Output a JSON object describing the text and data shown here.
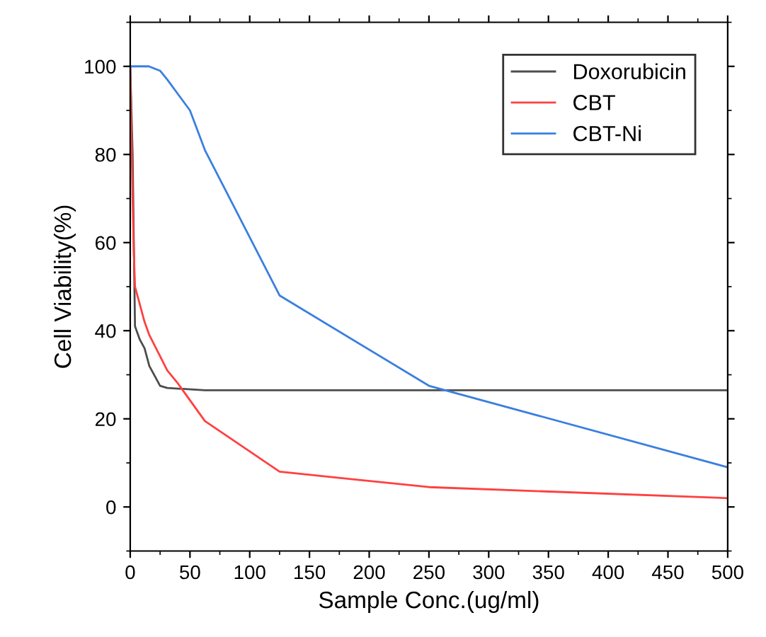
{
  "chart_data": {
    "type": "line",
    "xlabel": "Sample Conc.(ug/ml)",
    "ylabel": "Cell Viability(%)",
    "xlim": [
      0,
      500
    ],
    "xticks": [
      0,
      50,
      100,
      150,
      200,
      250,
      300,
      350,
      400,
      450,
      500
    ],
    "ylim": [
      -10,
      110
    ],
    "yticks": [
      0,
      20,
      40,
      60,
      80,
      100
    ],
    "grid": false,
    "legend": "top right",
    "marker": "none",
    "line_style": "solid",
    "series": [
      {
        "name": "Doxorubicin",
        "color": "#4d4d4d",
        "x": [
          0,
          2,
          3,
          4,
          8,
          12,
          16,
          25,
          31,
          62.5,
          125,
          250,
          500
        ],
        "values": [
          100,
          80,
          60,
          41,
          38,
          36,
          32,
          27.5,
          27,
          26.5,
          26.5,
          26.5,
          26.5
        ]
      },
      {
        "name": "CBT",
        "color": "#ff4040",
        "x": [
          0,
          2,
          3,
          4,
          8,
          12,
          16,
          31,
          40,
          62.5,
          125,
          250,
          500
        ],
        "values": [
          100,
          70,
          58,
          50,
          46,
          42,
          39,
          31,
          28,
          19.5,
          8,
          4.5,
          2
        ]
      },
      {
        "name": "CBT-Ni",
        "color": "#3a7fe0",
        "x": [
          0,
          10,
          15.6,
          25,
          31,
          50,
          62.5,
          125,
          250,
          500
        ],
        "values": [
          100,
          100,
          100,
          99,
          97,
          90,
          81,
          48,
          27.5,
          9
        ]
      }
    ]
  }
}
